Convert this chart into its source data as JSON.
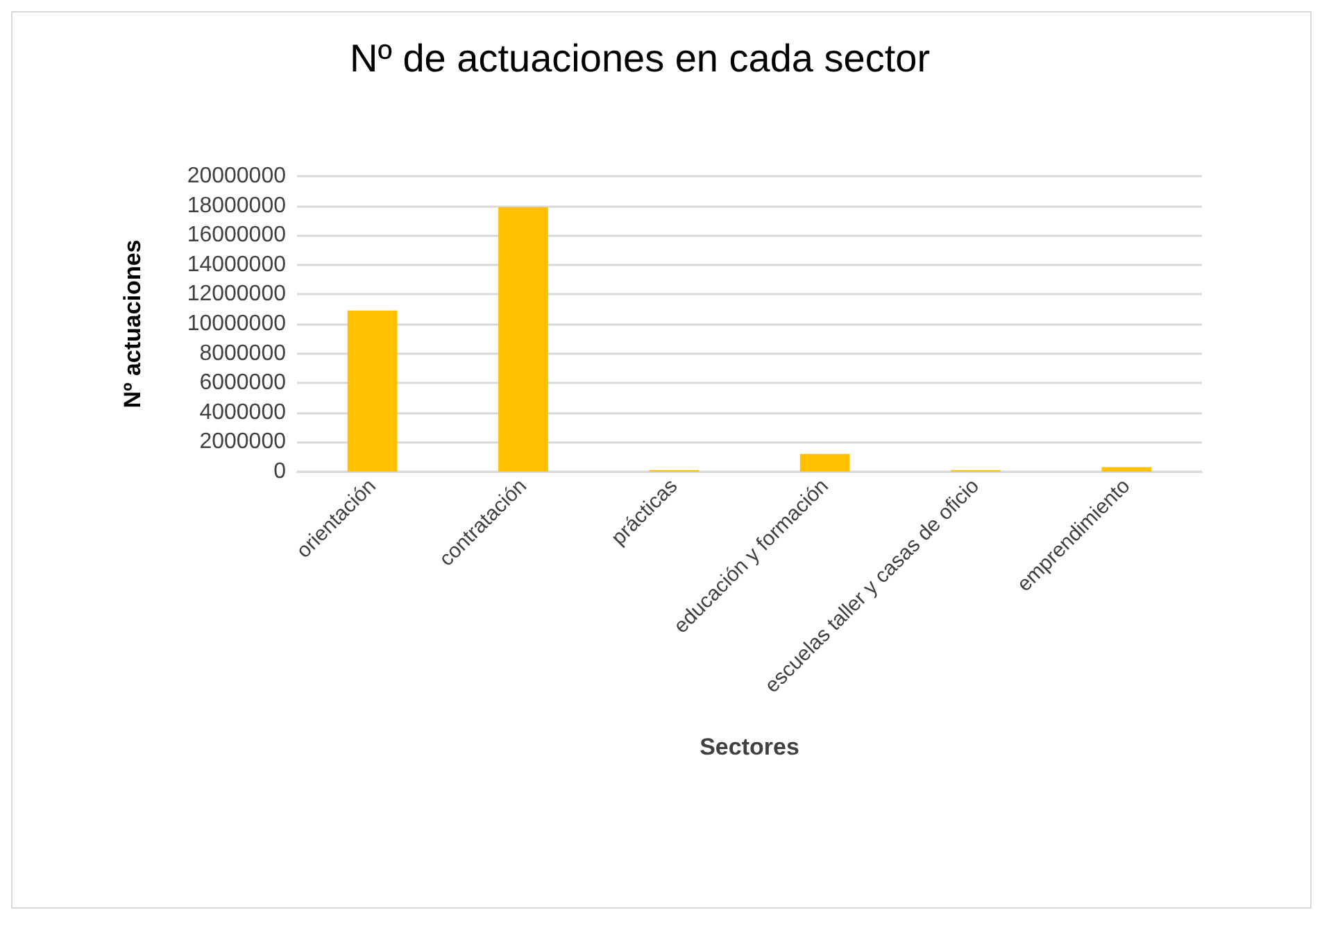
{
  "chart_data": {
    "type": "bar",
    "title": "Nº de actuaciones en cada sector",
    "xlabel": "Sectores",
    "ylabel": "Nº actuaciones",
    "categories": [
      "orientación",
      "contratación",
      "prácticas",
      "educación y formación",
      "escuelas taller y casas de oficio",
      "emprendimiento"
    ],
    "values": [
      10900000,
      17900000,
      100000,
      1200000,
      100000,
      300000
    ],
    "color": "#ffc000",
    "ylim": [
      0,
      20000000
    ],
    "yticks": [
      0,
      2000000,
      4000000,
      6000000,
      8000000,
      10000000,
      12000000,
      14000000,
      16000000,
      18000000,
      20000000
    ],
    "grid": "y"
  }
}
